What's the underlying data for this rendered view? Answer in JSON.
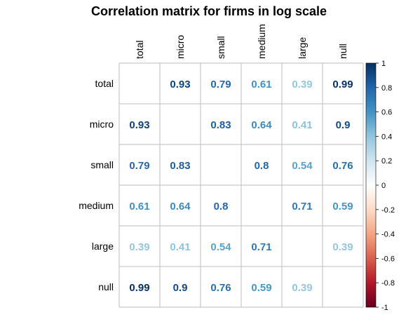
{
  "chart_data": {
    "type": "heatmap",
    "title": "Correlation matrix for firms  in log scale",
    "variables": [
      "total",
      "micro",
      "small",
      "medium",
      "large",
      "null"
    ],
    "matrix": [
      [
        null,
        0.93,
        0.79,
        0.61,
        0.39,
        0.99
      ],
      [
        0.93,
        null,
        0.83,
        0.64,
        0.41,
        0.9
      ],
      [
        0.79,
        0.83,
        null,
        0.8,
        0.54,
        0.76
      ],
      [
        0.61,
        0.64,
        0.8,
        null,
        0.71,
        0.59
      ],
      [
        0.39,
        0.41,
        0.54,
        0.71,
        null,
        0.39
      ],
      [
        0.99,
        0.9,
        0.76,
        0.59,
        0.39,
        null
      ]
    ],
    "value_labels": [
      [
        "",
        "0.93",
        "0.79",
        "0.61",
        "0.39",
        "0.99"
      ],
      [
        "0.93",
        "",
        "0.83",
        "0.64",
        "0.41",
        "0.9"
      ],
      [
        "0.79",
        "0.83",
        "",
        "0.8",
        "0.54",
        "0.76"
      ],
      [
        "0.61",
        "0.64",
        "0.8",
        "",
        "0.71",
        "0.59"
      ],
      [
        "0.39",
        "0.41",
        "0.54",
        "0.71",
        "",
        "0.39"
      ],
      [
        "0.99",
        "0.9",
        "0.76",
        "0.59",
        "0.39",
        ""
      ]
    ],
    "colorbar": {
      "range": [
        -1,
        1
      ],
      "ticks": [
        1,
        0.8,
        0.6,
        0.4,
        0.2,
        0,
        -0.2,
        -0.4,
        -0.6,
        -0.8,
        -1
      ],
      "tick_labels": [
        "1",
        "0.8",
        "0.6",
        "0.4",
        "0.2",
        "0",
        "-0.2",
        "-0.4",
        "-0.6",
        "-0.8",
        "-1"
      ],
      "palette": [
        "#67001F",
        "#B2182B",
        "#D6604D",
        "#F4A582",
        "#FDDBC7",
        "#FFFFFF",
        "#D1E5F0",
        "#92C5DE",
        "#4393C3",
        "#2166AC",
        "#053061"
      ]
    },
    "grid": true,
    "legend_position": "right"
  }
}
